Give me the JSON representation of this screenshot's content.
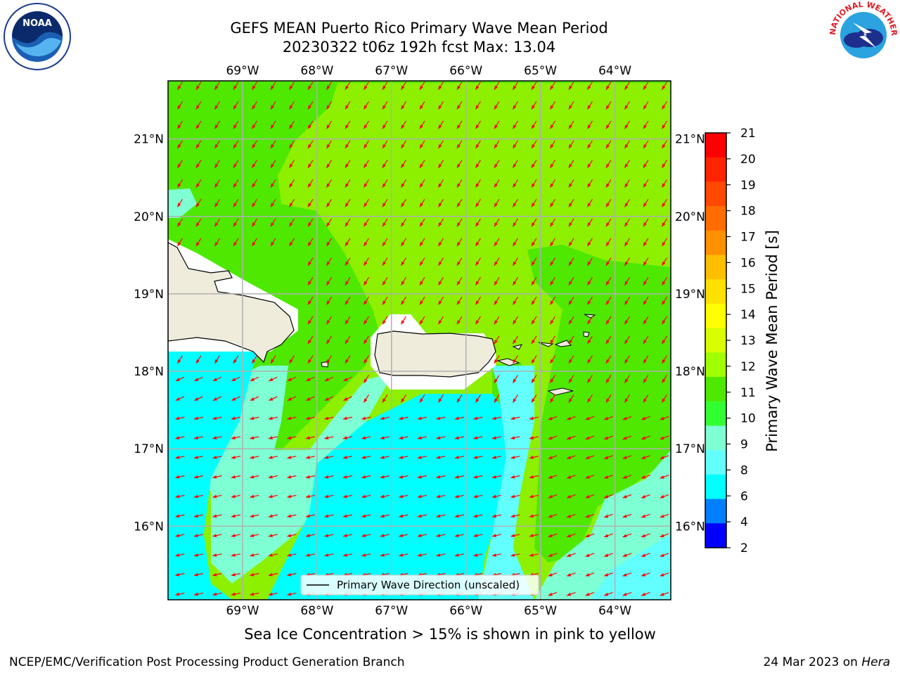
{
  "title_line1": "GEFS MEAN Puerto Rico Primary Wave Mean Period",
  "title_line2": "20230322 t06z 192h fcst   Max: 13.04",
  "map": {
    "lon_labels": [
      "69°W",
      "68°W",
      "67°W",
      "66°W",
      "65°W",
      "64°W"
    ],
    "lon_values": [
      -69,
      -68,
      -67,
      -66,
      -65,
      -64
    ],
    "lat_labels": [
      "21°N",
      "20°N",
      "19°N",
      "18°N",
      "17°N",
      "16°N"
    ],
    "lat_values": [
      21,
      20,
      19,
      18,
      17,
      16
    ],
    "lon_range": [
      -70.0,
      -63.25
    ],
    "lat_range": [
      15.05,
      21.75
    ],
    "arrow_color": "#ff0000",
    "land_color": "#efecdc",
    "legend_label": "Primary Wave Direction (unscaled)"
  },
  "colorbar": {
    "label": "Primary Wave Mean Period [s]",
    "ticks": [
      "21",
      "20",
      "19",
      "18",
      "17",
      "16",
      "15",
      "14",
      "13",
      "12",
      "11",
      "10",
      "9",
      "8",
      "6",
      "4",
      "2"
    ],
    "colors_top_to_bottom": [
      "#ff0000",
      "#ff2400",
      "#ff4800",
      "#ff6c00",
      "#ff9000",
      "#ffbf00",
      "#ffe100",
      "#ffff00",
      "#d7ff00",
      "#a0ff00",
      "#4ee800",
      "#32ff32",
      "#7fffd4",
      "#63ffff",
      "#00ffff",
      "#0080ff",
      "#0000ff"
    ]
  },
  "field_colors": {
    "period_13": "#8cf000",
    "period_12": "#4ee800",
    "period_11": "#32ff32",
    "period_9": "#7fffd4",
    "period_8": "#63ffff",
    "period_7": "#00ffff"
  },
  "bottom_note": "Sea Ice Concentration > 15% is shown in pink to yellow",
  "footer_left": "NCEP/EMC/Verification Post Processing Product Generation Branch",
  "footer_date": "24 Mar 2023 on ",
  "footer_machine": "Hera",
  "logos": {
    "noaa_text": "NOAA",
    "nws_text": "NATIONAL WEATHER SERVICE"
  }
}
